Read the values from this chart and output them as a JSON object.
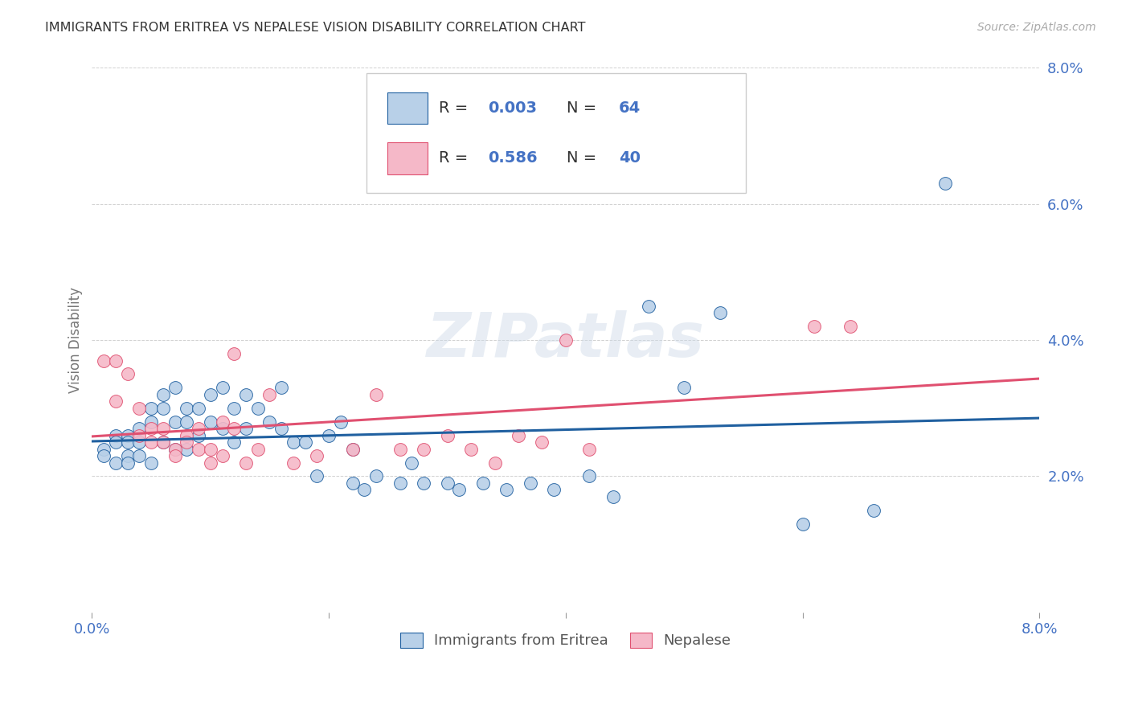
{
  "title": "IMMIGRANTS FROM ERITREA VS NEPALESE VISION DISABILITY CORRELATION CHART",
  "source": "Source: ZipAtlas.com",
  "ylabel": "Vision Disability",
  "xlim": [
    0.0,
    0.08
  ],
  "ylim": [
    0.0,
    0.08
  ],
  "blue_color": "#b8d0e8",
  "pink_color": "#f5b8c8",
  "blue_line_color": "#2060a0",
  "pink_line_color": "#e05070",
  "axis_color": "#4472c4",
  "legend_label1": "Immigrants from Eritrea",
  "legend_label2": "Nepalese",
  "watermark": "ZIPatlas",
  "blue_scatter_x": [
    0.001,
    0.001,
    0.002,
    0.002,
    0.002,
    0.003,
    0.003,
    0.003,
    0.003,
    0.004,
    0.004,
    0.004,
    0.005,
    0.005,
    0.005,
    0.006,
    0.006,
    0.006,
    0.007,
    0.007,
    0.007,
    0.008,
    0.008,
    0.008,
    0.009,
    0.009,
    0.01,
    0.01,
    0.011,
    0.011,
    0.012,
    0.012,
    0.013,
    0.013,
    0.014,
    0.015,
    0.016,
    0.016,
    0.017,
    0.018,
    0.019,
    0.02,
    0.021,
    0.022,
    0.022,
    0.023,
    0.024,
    0.026,
    0.027,
    0.028,
    0.03,
    0.031,
    0.033,
    0.035,
    0.037,
    0.039,
    0.042,
    0.044,
    0.047,
    0.05,
    0.053,
    0.06,
    0.066,
    0.072
  ],
  "blue_scatter_y": [
    0.024,
    0.023,
    0.026,
    0.025,
    0.022,
    0.026,
    0.025,
    0.023,
    0.022,
    0.027,
    0.025,
    0.023,
    0.03,
    0.028,
    0.022,
    0.032,
    0.03,
    0.025,
    0.033,
    0.028,
    0.024,
    0.03,
    0.028,
    0.024,
    0.03,
    0.026,
    0.032,
    0.028,
    0.033,
    0.027,
    0.03,
    0.025,
    0.032,
    0.027,
    0.03,
    0.028,
    0.033,
    0.027,
    0.025,
    0.025,
    0.02,
    0.026,
    0.028,
    0.019,
    0.024,
    0.018,
    0.02,
    0.019,
    0.022,
    0.019,
    0.019,
    0.018,
    0.019,
    0.018,
    0.019,
    0.018,
    0.02,
    0.017,
    0.045,
    0.033,
    0.044,
    0.013,
    0.015,
    0.063
  ],
  "pink_scatter_x": [
    0.001,
    0.002,
    0.002,
    0.003,
    0.004,
    0.004,
    0.005,
    0.005,
    0.006,
    0.006,
    0.007,
    0.007,
    0.008,
    0.008,
    0.009,
    0.009,
    0.01,
    0.01,
    0.011,
    0.011,
    0.012,
    0.012,
    0.013,
    0.014,
    0.015,
    0.017,
    0.019,
    0.022,
    0.024,
    0.026,
    0.028,
    0.03,
    0.032,
    0.034,
    0.036,
    0.038,
    0.04,
    0.042,
    0.061,
    0.064
  ],
  "pink_scatter_y": [
    0.037,
    0.037,
    0.031,
    0.035,
    0.03,
    0.026,
    0.027,
    0.025,
    0.027,
    0.025,
    0.024,
    0.023,
    0.026,
    0.025,
    0.027,
    0.024,
    0.024,
    0.022,
    0.028,
    0.023,
    0.027,
    0.038,
    0.022,
    0.024,
    0.032,
    0.022,
    0.023,
    0.024,
    0.032,
    0.024,
    0.024,
    0.026,
    0.024,
    0.022,
    0.026,
    0.025,
    0.04,
    0.024,
    0.042,
    0.042
  ]
}
